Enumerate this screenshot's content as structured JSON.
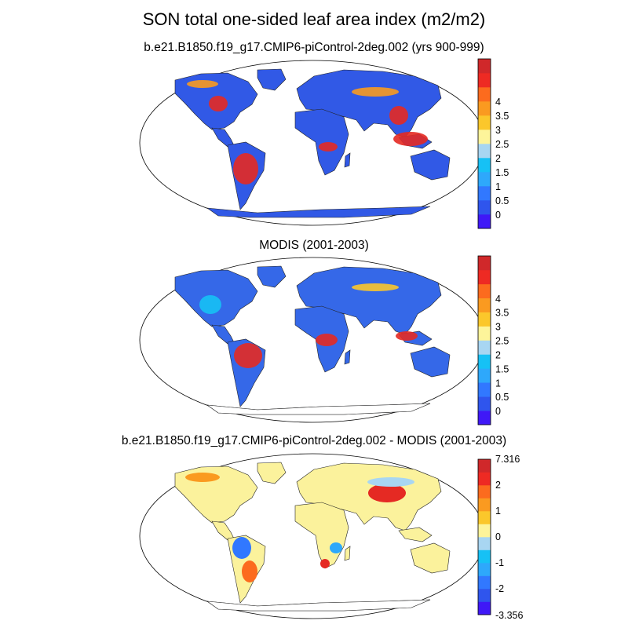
{
  "title": "SON total one-sided leaf area index (m2/m2)",
  "panels": [
    {
      "id": "model",
      "title": "b.e21.B1850.f19_g17.CMIP6-piControl-2deg.002 (yrs 900-999)",
      "colorbar": {
        "colors": [
          "#3f18f7",
          "#2f55ed",
          "#3178ff",
          "#2ea8fb",
          "#16c1f5",
          "#a8d6f2",
          "#fdf49a",
          "#fbc72b",
          "#fa9a20",
          "#fc6b1e",
          "#ee2a23",
          "#d0282a"
        ],
        "labels": [
          "0",
          "0.5",
          "1",
          "1.5",
          "2",
          "2.5",
          "3",
          "3.5",
          "4"
        ]
      },
      "fill": "#3159e6"
    },
    {
      "id": "modis",
      "title": "MODIS (2001-2003)",
      "colorbar": {
        "colors": [
          "#3f18f7",
          "#2f55ed",
          "#3178ff",
          "#2ea8fb",
          "#16c1f5",
          "#a8d6f2",
          "#fdf49a",
          "#fbc72b",
          "#fa9a20",
          "#fc6b1e",
          "#ee2a23",
          "#d0282a"
        ],
        "labels": [
          "0",
          "0.5",
          "1",
          "1.5",
          "2",
          "2.5",
          "3",
          "3.5",
          "4"
        ]
      },
      "fill": "#3568e8"
    },
    {
      "id": "difference",
      "title": "b.e21.B1850.f19_g17.CMIP6-piControl-2deg.002 - MODIS (2001-2003)",
      "colorbar": {
        "colors": [
          "#3f18f7",
          "#2f55ed",
          "#3178ff",
          "#2ea8fb",
          "#16c1f5",
          "#a8d6f2",
          "#fdf49a",
          "#fbc72b",
          "#fa9a20",
          "#fc6b1e",
          "#ee2a23",
          "#d0282a"
        ],
        "labels": [
          "7.316",
          "2",
          "1",
          "0",
          "-1",
          "-2",
          "-3.356"
        ]
      },
      "fill": "#fbf29c"
    }
  ]
}
